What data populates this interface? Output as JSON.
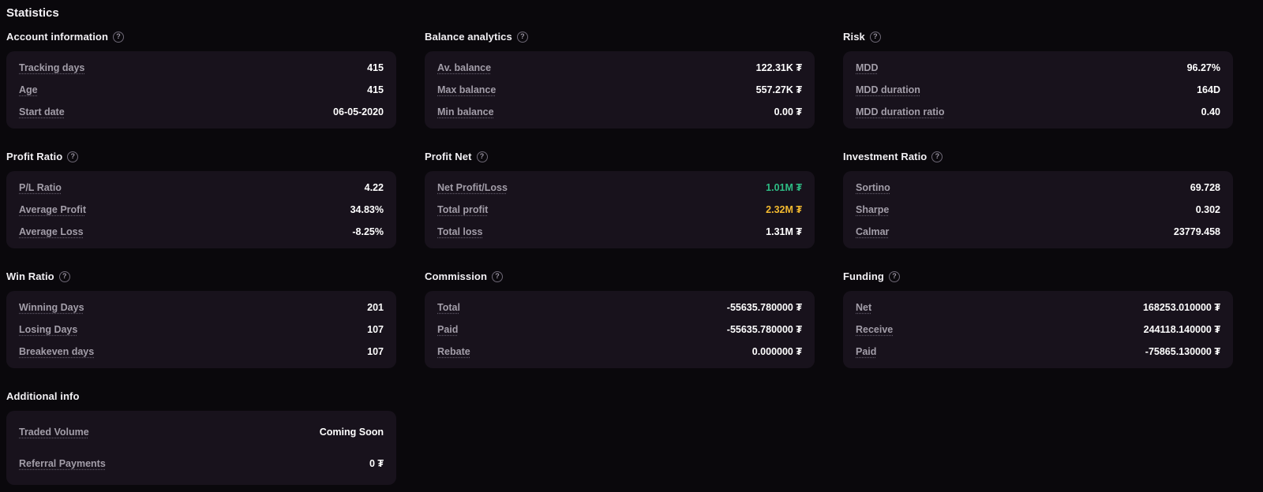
{
  "page_title": "Statistics",
  "colors": {
    "background": "#0a080c",
    "card": "#18121c",
    "positive": "#2ebd85",
    "warning": "#f3ba2f",
    "label": "#a39ea9",
    "value": "#ffffff"
  },
  "cards": [
    {
      "title": "Account information",
      "has_info": true,
      "rows": [
        {
          "label": "Tracking days",
          "value": "415"
        },
        {
          "label": "Age",
          "value": "415"
        },
        {
          "label": "Start date",
          "value": "06-05-2020"
        }
      ]
    },
    {
      "title": "Balance analytics",
      "has_info": true,
      "rows": [
        {
          "label": "Av. balance",
          "value": "122.31K ₮"
        },
        {
          "label": "Max balance",
          "value": "557.27K ₮"
        },
        {
          "label": "Min balance",
          "value": "0.00 ₮"
        }
      ]
    },
    {
      "title": "Risk",
      "has_info": true,
      "rows": [
        {
          "label": "MDD",
          "value": "96.27%"
        },
        {
          "label": "MDD duration",
          "value": "164D"
        },
        {
          "label": "MDD duration ratio",
          "value": "0.40"
        }
      ]
    },
    {
      "title": "Profit Ratio",
      "has_info": true,
      "rows": [
        {
          "label": "P/L Ratio",
          "value": "4.22"
        },
        {
          "label": "Average Profit",
          "value": "34.83%"
        },
        {
          "label": "Average Loss",
          "value": "-8.25%"
        }
      ]
    },
    {
      "title": "Profit Net",
      "has_info": true,
      "rows": [
        {
          "label": "Net Profit/Loss",
          "value": "1.01M ₮",
          "value_color": "#2ebd85"
        },
        {
          "label": "Total profit",
          "value": "2.32M ₮",
          "value_color": "#f3ba2f"
        },
        {
          "label": "Total loss",
          "value": "1.31M ₮"
        }
      ]
    },
    {
      "title": "Investment Ratio",
      "has_info": true,
      "rows": [
        {
          "label": "Sortino",
          "value": "69.728"
        },
        {
          "label": "Sharpe",
          "value": "0.302"
        },
        {
          "label": "Calmar",
          "value": "23779.458"
        }
      ]
    },
    {
      "title": "Win Ratio",
      "has_info": true,
      "rows": [
        {
          "label": "Winning Days",
          "value": "201"
        },
        {
          "label": "Losing Days",
          "value": "107"
        },
        {
          "label": "Breakeven days",
          "value": "107"
        }
      ]
    },
    {
      "title": "Commission",
      "has_info": true,
      "rows": [
        {
          "label": "Total",
          "value": "-55635.780000 ₮"
        },
        {
          "label": "Paid",
          "value": "-55635.780000 ₮"
        },
        {
          "label": "Rebate",
          "value": "0.000000 ₮"
        }
      ]
    },
    {
      "title": "Funding",
      "has_info": true,
      "rows": [
        {
          "label": "Net",
          "value": "168253.010000 ₮"
        },
        {
          "label": "Receive",
          "value": "244118.140000 ₮"
        },
        {
          "label": "Paid",
          "value": "-75865.130000 ₮"
        }
      ]
    },
    {
      "title": "Additional info",
      "has_info": false,
      "rows": [
        {
          "label": "Traded Volume",
          "value": "Coming Soon"
        },
        {
          "label": "Referral Payments",
          "value": "0 ₮"
        }
      ]
    }
  ]
}
